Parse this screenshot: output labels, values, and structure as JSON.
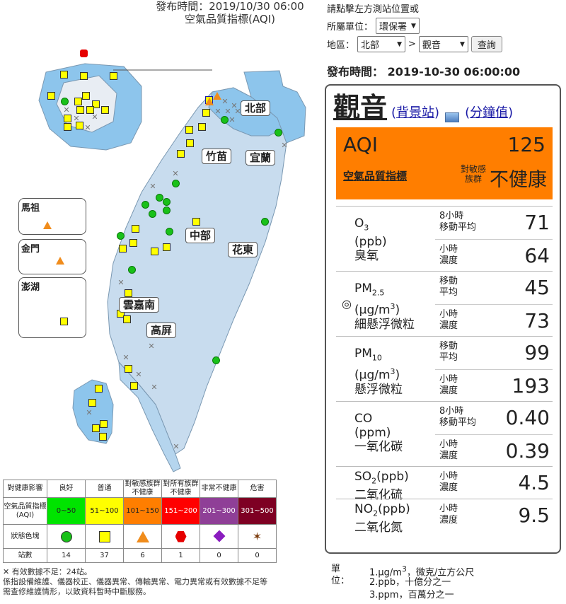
{
  "map": {
    "publish_line": "發布時間：2019/10/30 06:00",
    "title": "空氣品質指標(AQI)",
    "regions": [
      "北部",
      "竹苗",
      "宜蘭",
      "中部",
      "花東",
      "雲嘉南",
      "高屏"
    ],
    "insets": [
      "馬祖",
      "金門",
      "澎湖"
    ]
  },
  "legend": {
    "header_label": "對健康影響",
    "categories": [
      "良好",
      "普通",
      "對敏感族群不健康",
      "對所有族群不健康",
      "非常不健康",
      "危害"
    ],
    "aqi_label": "空氣品質指標(AQI)",
    "ranges": [
      "0~50",
      "51~100",
      "101~150",
      "151~200",
      "201~300",
      "301~500"
    ],
    "colors": [
      "#00e400",
      "#ffff00",
      "#ff7e00",
      "#ff0000",
      "#8f3f97",
      "#7e0023"
    ],
    "icon_label": "狀態色塊",
    "icons": [
      "circle-icon",
      "square-icon",
      "triangle-icon",
      "hexagon-icon",
      "diamond-icon",
      "star-icon"
    ],
    "count_label": "站數",
    "counts": [
      "14",
      "37",
      "6",
      "1",
      "0",
      "0"
    ],
    "invalid_note": "有效數據不足：24站。",
    "maintenance_note_1": "係指設備維護、儀器校正、儀器異常、傳輸異常、電力異常或有效數據不足等",
    "maintenance_note_2": "需查修維護情形，以致資料暫時中斷服務。"
  },
  "controls": {
    "prompt": "請點擊左方測站位置或",
    "agency_label": "所屬單位：",
    "agency_value": "環保署",
    "area_label": "地區：",
    "area_value": "北部",
    "separator": ">",
    "station_value": "觀音",
    "query_button": "查詢"
  },
  "station": {
    "publish_label": "發布時間：",
    "publish_time": "2019-10-30 06:00:00",
    "name": "觀音",
    "link_background": "背景站",
    "link_minute": "分鐘值",
    "aqi_label": "AQI",
    "aqi_value": "125",
    "aqi_cn": "空氣品質指標",
    "sensitive_1": "對敏感",
    "sensitive_2": "族群",
    "status": "不健康",
    "aqi_color": "#ff7e00"
  },
  "pollutants": [
    {
      "name": "O",
      "sub": "3",
      "unit": "(ppb)",
      "cn": "臭氧",
      "rows": [
        {
          "l1": "8小時",
          "l2": "移動平均",
          "val": "71"
        },
        {
          "l1": "小時",
          "l2": "濃度",
          "val": "64"
        }
      ]
    },
    {
      "name": "PM",
      "sub": "2.5",
      "unit": "(μg/m",
      "unit_sup": "3",
      "unit_end": ")",
      "cn": "細懸浮微粒",
      "rows": [
        {
          "l1": "移動",
          "l2": "平均",
          "val": "45"
        },
        {
          "l1": "小時",
          "l2": "濃度",
          "val": "73"
        }
      ]
    },
    {
      "name": "PM",
      "sub": "10",
      "unit": "(μg/m",
      "unit_sup": "3",
      "unit_end": ")",
      "cn": "懸浮微粒",
      "rows": [
        {
          "l1": "移動",
          "l2": "平均",
          "val": "99"
        },
        {
          "l1": "小時",
          "l2": "濃度",
          "val": "193"
        }
      ]
    },
    {
      "name": "CO",
      "unit": "(ppm)",
      "cn": "一氧化碳",
      "rows": [
        {
          "l1": "8小時",
          "l2": "移動平均",
          "val": "0.40"
        },
        {
          "l1": "小時",
          "l2": "濃度",
          "val": "0.39"
        }
      ]
    },
    {
      "name": "SO",
      "sub": "2",
      "unit": "(ppb)",
      "cn": "二氧化硫",
      "rows": [
        {
          "l1": "小時",
          "l2": "濃度",
          "val": "4.5"
        }
      ]
    },
    {
      "name": "NO",
      "sub": "2",
      "unit": "(ppb)",
      "cn": "二氧化氮",
      "rows": [
        {
          "l1": "小時",
          "l2": "濃度",
          "val": "9.5"
        }
      ]
    }
  ],
  "target_symbol": "◎",
  "units": {
    "label": "單位：",
    "u1a": "1.μg/m",
    "u1b": "3",
    "u1c": "，微克/立方公尺",
    "u2": "2.ppb，十億分之一",
    "u3": "3.ppm，百萬分之一"
  }
}
